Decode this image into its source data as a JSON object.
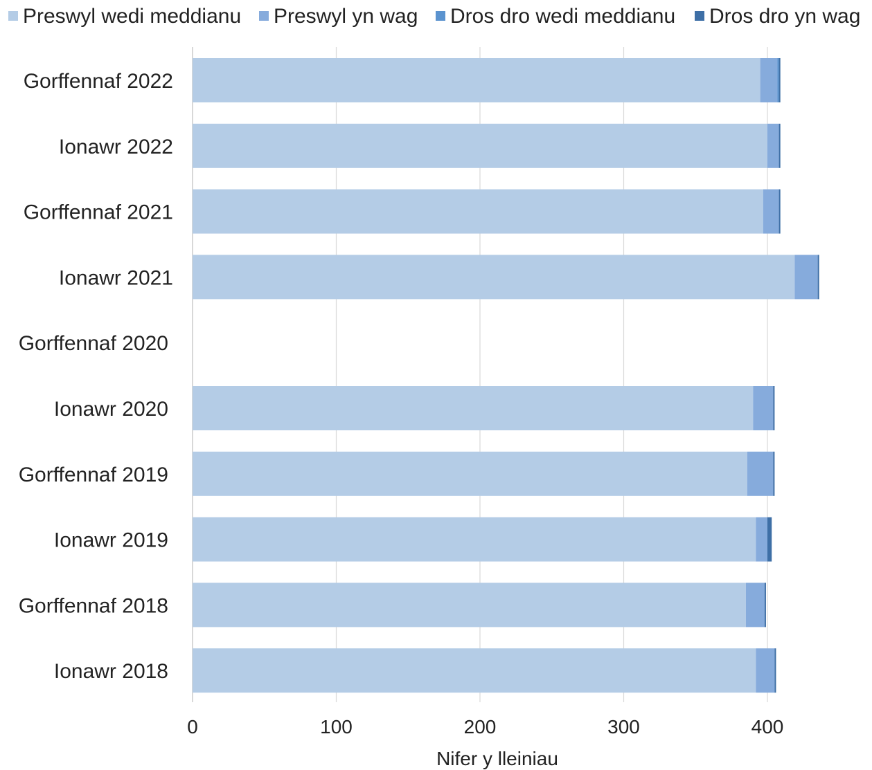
{
  "chart_data": {
    "type": "bar",
    "orientation": "horizontal",
    "stacked": true,
    "title": "",
    "xlabel": "Nifer y lleiniau",
    "ylabel": "",
    "xlim": [
      0,
      450
    ],
    "xticks": [
      0,
      100,
      200,
      300,
      400
    ],
    "grid": true,
    "legend_position": "top",
    "categories": [
      "Gorffennaf 2022",
      "Ionawr 2022",
      "Gorffennaf 2021",
      "Ionawr 2021",
      "Gorffennaf 2020",
      "Ionawr 2020",
      "Gorffennaf 2019",
      "Ionawr 2019",
      "Gorffennaf 2018",
      "Ionawr 2018"
    ],
    "series": [
      {
        "name": "Preswyl wedi meddianu",
        "color": "#b4cce6",
        "values": [
          395,
          400,
          397,
          419,
          null,
          390,
          386,
          392,
          385,
          392
        ]
      },
      {
        "name": "Preswyl yn wag",
        "color": "#86abdc",
        "values": [
          12,
          8,
          11,
          16,
          null,
          14,
          18,
          8,
          13,
          13
        ]
      },
      {
        "name": "Dros dro wedi meddianu",
        "color": "#5b93cf",
        "values": [
          1,
          0,
          0,
          0,
          null,
          0,
          0,
          0,
          0,
          0
        ]
      },
      {
        "name": "Dros dro yn wag",
        "color": "#3e6fa6",
        "values": [
          1,
          1,
          1,
          1,
          null,
          1,
          1,
          3,
          1,
          1
        ]
      }
    ]
  }
}
